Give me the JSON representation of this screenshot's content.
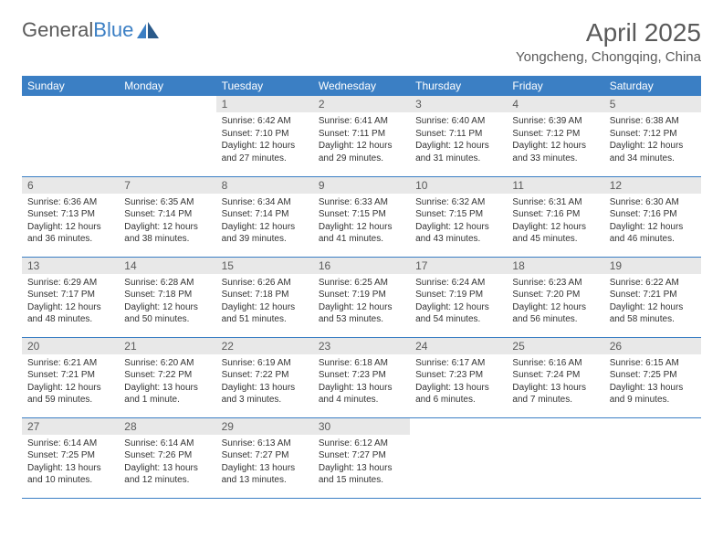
{
  "logo": {
    "word1": "General",
    "word2": "Blue"
  },
  "title": "April 2025",
  "location": "Yongcheng, Chongqing, China",
  "colors": {
    "header_bg": "#3b7fc4",
    "header_text": "#ffffff",
    "daynum_bg": "#e8e8e8",
    "border": "#3b7fc4",
    "text": "#333333",
    "title_text": "#5a5a5a"
  },
  "day_headers": [
    "Sunday",
    "Monday",
    "Tuesday",
    "Wednesday",
    "Thursday",
    "Friday",
    "Saturday"
  ],
  "weeks": [
    [
      null,
      null,
      {
        "n": "1",
        "sr": "6:42 AM",
        "ss": "7:10 PM",
        "dl": "12 hours and 27 minutes."
      },
      {
        "n": "2",
        "sr": "6:41 AM",
        "ss": "7:11 PM",
        "dl": "12 hours and 29 minutes."
      },
      {
        "n": "3",
        "sr": "6:40 AM",
        "ss": "7:11 PM",
        "dl": "12 hours and 31 minutes."
      },
      {
        "n": "4",
        "sr": "6:39 AM",
        "ss": "7:12 PM",
        "dl": "12 hours and 33 minutes."
      },
      {
        "n": "5",
        "sr": "6:38 AM",
        "ss": "7:12 PM",
        "dl": "12 hours and 34 minutes."
      }
    ],
    [
      {
        "n": "6",
        "sr": "6:36 AM",
        "ss": "7:13 PM",
        "dl": "12 hours and 36 minutes."
      },
      {
        "n": "7",
        "sr": "6:35 AM",
        "ss": "7:14 PM",
        "dl": "12 hours and 38 minutes."
      },
      {
        "n": "8",
        "sr": "6:34 AM",
        "ss": "7:14 PM",
        "dl": "12 hours and 39 minutes."
      },
      {
        "n": "9",
        "sr": "6:33 AM",
        "ss": "7:15 PM",
        "dl": "12 hours and 41 minutes."
      },
      {
        "n": "10",
        "sr": "6:32 AM",
        "ss": "7:15 PM",
        "dl": "12 hours and 43 minutes."
      },
      {
        "n": "11",
        "sr": "6:31 AM",
        "ss": "7:16 PM",
        "dl": "12 hours and 45 minutes."
      },
      {
        "n": "12",
        "sr": "6:30 AM",
        "ss": "7:16 PM",
        "dl": "12 hours and 46 minutes."
      }
    ],
    [
      {
        "n": "13",
        "sr": "6:29 AM",
        "ss": "7:17 PM",
        "dl": "12 hours and 48 minutes."
      },
      {
        "n": "14",
        "sr": "6:28 AM",
        "ss": "7:18 PM",
        "dl": "12 hours and 50 minutes."
      },
      {
        "n": "15",
        "sr": "6:26 AM",
        "ss": "7:18 PM",
        "dl": "12 hours and 51 minutes."
      },
      {
        "n": "16",
        "sr": "6:25 AM",
        "ss": "7:19 PM",
        "dl": "12 hours and 53 minutes."
      },
      {
        "n": "17",
        "sr": "6:24 AM",
        "ss": "7:19 PM",
        "dl": "12 hours and 54 minutes."
      },
      {
        "n": "18",
        "sr": "6:23 AM",
        "ss": "7:20 PM",
        "dl": "12 hours and 56 minutes."
      },
      {
        "n": "19",
        "sr": "6:22 AM",
        "ss": "7:21 PM",
        "dl": "12 hours and 58 minutes."
      }
    ],
    [
      {
        "n": "20",
        "sr": "6:21 AM",
        "ss": "7:21 PM",
        "dl": "12 hours and 59 minutes."
      },
      {
        "n": "21",
        "sr": "6:20 AM",
        "ss": "7:22 PM",
        "dl": "13 hours and 1 minute."
      },
      {
        "n": "22",
        "sr": "6:19 AM",
        "ss": "7:22 PM",
        "dl": "13 hours and 3 minutes."
      },
      {
        "n": "23",
        "sr": "6:18 AM",
        "ss": "7:23 PM",
        "dl": "13 hours and 4 minutes."
      },
      {
        "n": "24",
        "sr": "6:17 AM",
        "ss": "7:23 PM",
        "dl": "13 hours and 6 minutes."
      },
      {
        "n": "25",
        "sr": "6:16 AM",
        "ss": "7:24 PM",
        "dl": "13 hours and 7 minutes."
      },
      {
        "n": "26",
        "sr": "6:15 AM",
        "ss": "7:25 PM",
        "dl": "13 hours and 9 minutes."
      }
    ],
    [
      {
        "n": "27",
        "sr": "6:14 AM",
        "ss": "7:25 PM",
        "dl": "13 hours and 10 minutes."
      },
      {
        "n": "28",
        "sr": "6:14 AM",
        "ss": "7:26 PM",
        "dl": "13 hours and 12 minutes."
      },
      {
        "n": "29",
        "sr": "6:13 AM",
        "ss": "7:27 PM",
        "dl": "13 hours and 13 minutes."
      },
      {
        "n": "30",
        "sr": "6:12 AM",
        "ss": "7:27 PM",
        "dl": "13 hours and 15 minutes."
      },
      null,
      null,
      null
    ]
  ],
  "labels": {
    "sunrise": "Sunrise:",
    "sunset": "Sunset:",
    "daylight": "Daylight:"
  }
}
